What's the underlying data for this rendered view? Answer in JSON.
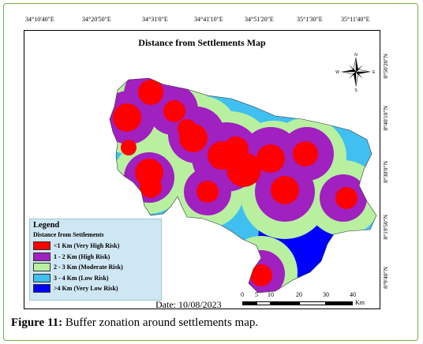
{
  "map": {
    "title": "Distance from Settlements Map",
    "longitude_labels": [
      "34°10'40\"E",
      "34°20'50\"E",
      "34°31'0\"E",
      "34°41'10\"E",
      "34°51'20\"E",
      "35°1'30\"E",
      "35°11'40\"E"
    ],
    "latitude_labels": [
      "8°50'20\"N",
      "8°40'10\"N",
      "8°30'0\"N",
      "8°19'50\"N",
      "8°9'40\"N"
    ],
    "date": "Date: 10/08/2023",
    "north_arrow_letters": {
      "n": "N",
      "s": "S",
      "e": "E",
      "w": "W"
    }
  },
  "legend": {
    "title": "Legend",
    "subtitle": "Distance from Settlements",
    "items": [
      {
        "label": "<1 Km (Very High Risk)",
        "color": "#ff0000"
      },
      {
        "label": "1 - 2 Km (High Risk)",
        "color": "#a020c0"
      },
      {
        "label": "2 - 3 Km (Moderate Risk)",
        "color": "#b8f0a0"
      },
      {
        "label": "3 - 4 Km (Low Risk)",
        "color": "#40c0f0"
      },
      {
        "label": ">4 Km (Very Low Risk)",
        "color": "#0000ff"
      }
    ]
  },
  "scale_bar": {
    "ticks": [
      "0",
      "5",
      "10",
      "20",
      "30",
      "40"
    ],
    "unit": "Km"
  },
  "caption": {
    "label": "Figure 11:",
    "text": " Buffer zonation around settlements map."
  }
}
